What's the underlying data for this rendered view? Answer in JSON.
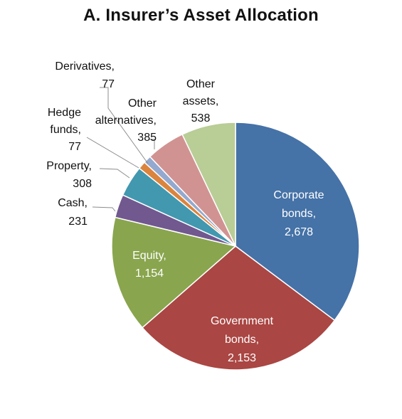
{
  "chart_data": {
    "type": "pie",
    "title": "A.  Insurer’s Asset Allocation",
    "slices": [
      {
        "lines": [
          "Corporate",
          "bonds,",
          "2,678"
        ],
        "value": 2678,
        "color": "#4572A7",
        "label_color": "#ffffff"
      },
      {
        "lines": [
          "Government",
          "bonds,",
          "2,153"
        ],
        "value": 2153,
        "color": "#AA4643",
        "label_color": "#ffffff"
      },
      {
        "lines": [
          "Equity,",
          "1,154"
        ],
        "value": 1154,
        "color": "#89A54E",
        "label_color": "#ffffff"
      },
      {
        "lines": [
          "Cash,",
          "231"
        ],
        "value": 231,
        "color": "#71588F",
        "label_color": "#111111"
      },
      {
        "lines": [
          "Property,",
          "308"
        ],
        "value": 308,
        "color": "#4198AF",
        "label_color": "#111111"
      },
      {
        "lines": [
          "Hedge",
          "funds,",
          "77"
        ],
        "value": 77,
        "color": "#DB843D",
        "label_color": "#111111"
      },
      {
        "lines": [
          "Derivatives,",
          "77"
        ],
        "value": 77,
        "color": "#93A9CF",
        "label_color": "#111111"
      },
      {
        "lines": [
          "Other",
          "alternatives,",
          "385"
        ],
        "value": 385,
        "color": "#D19392",
        "label_color": "#111111"
      },
      {
        "lines": [
          "Other",
          "assets,",
          "538"
        ],
        "value": 538,
        "color": "#B9CD96",
        "label_color": "#111111"
      }
    ]
  }
}
